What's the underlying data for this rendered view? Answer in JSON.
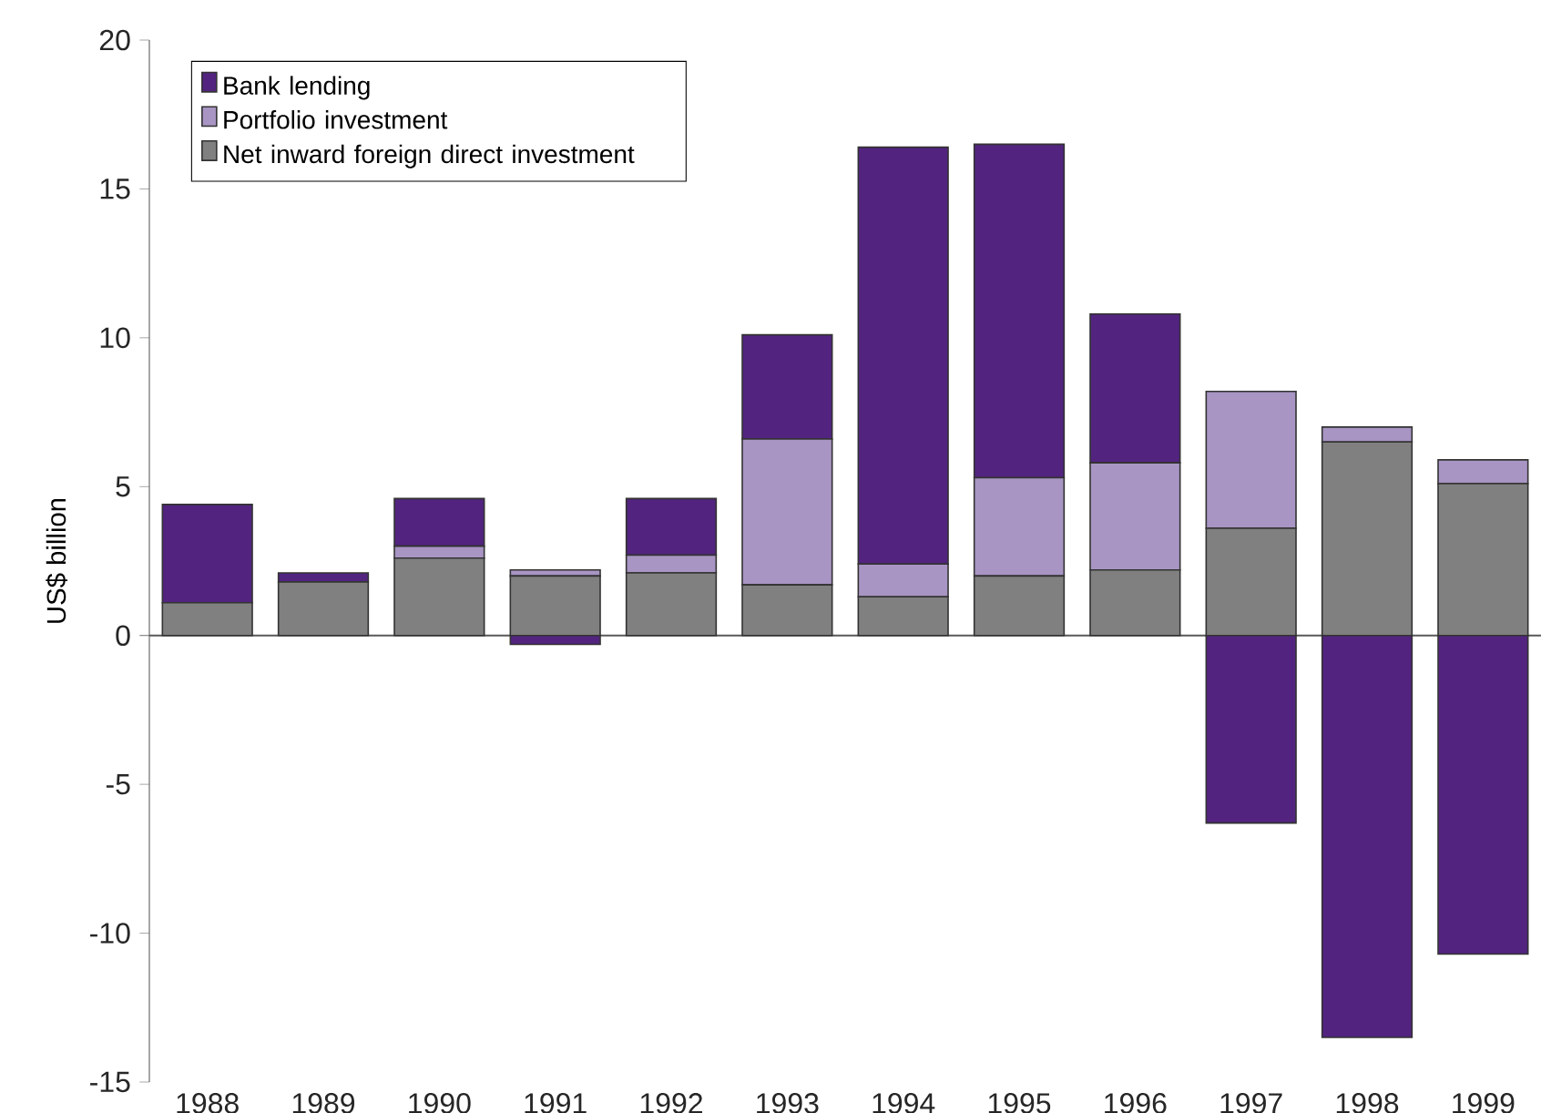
{
  "chart_data": {
    "type": "bar",
    "stacked": true,
    "ylabel": "US$ billion",
    "categories": [
      "1988",
      "1989",
      "1990",
      "1991",
      "1992",
      "1993",
      "1994",
      "1995",
      "1996",
      "1997",
      "1998",
      "1999"
    ],
    "series": [
      {
        "name": "Net inward foreign direct investment",
        "color": "#808080",
        "values": [
          1.1,
          1.8,
          2.6,
          2.0,
          2.1,
          1.7,
          1.3,
          2.0,
          2.2,
          3.6,
          6.5,
          5.1
        ]
      },
      {
        "name": "Portfolio investment",
        "color": "#a895c3",
        "values": [
          0,
          0,
          0.4,
          0.2,
          0.6,
          4.9,
          1.1,
          3.3,
          3.6,
          4.6,
          0.5,
          0.8
        ]
      },
      {
        "name": "Bank lending",
        "color": "#52247f",
        "values": [
          3.3,
          0.3,
          1.6,
          -0.3,
          1.9,
          3.5,
          14.0,
          11.2,
          5.0,
          -6.3,
          -13.5,
          -10.7
        ]
      }
    ],
    "ylim": [
      -15,
      20
    ],
    "yticks": [
      -15,
      -10,
      -5,
      0,
      5,
      10,
      15,
      20
    ],
    "legend": "top left"
  }
}
